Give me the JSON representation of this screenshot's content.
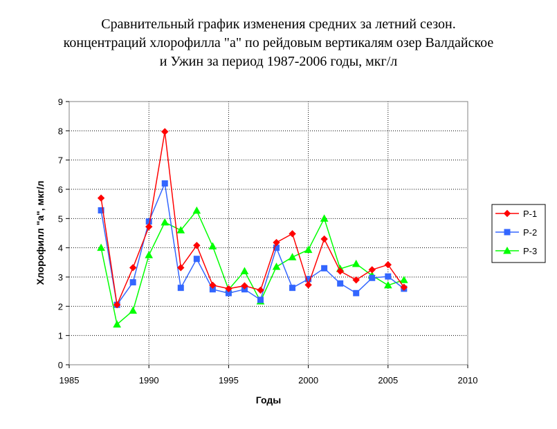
{
  "chart_data": {
    "type": "line",
    "title_lines": [
      "Сравнительный график изменения средних за летний сезон.",
      "концентраций хлорофилла \"а\" по рейдовым вертикалям озер Валдайское",
      "и Ужин за период 1987-2006 годы, мкг/л"
    ],
    "xlabel": "Годы",
    "ylabel": "Хлорофилл \"а\", мкг/л",
    "xlim": [
      1985,
      2010
    ],
    "ylim": [
      0,
      9
    ],
    "x_ticks": [
      1985,
      1990,
      1995,
      2000,
      2005,
      2010
    ],
    "y_ticks": [
      0,
      1,
      2,
      3,
      4,
      5,
      6,
      7,
      8,
      9
    ],
    "grid": true,
    "legend_position": "right",
    "x": [
      1987,
      1988,
      1989,
      1990,
      1991,
      1992,
      1993,
      1994,
      1995,
      1996,
      1997,
      1998,
      1999,
      2000,
      2001,
      2002,
      2003,
      2004,
      2005,
      2006
    ],
    "series": [
      {
        "name": "P-1",
        "color": "#ff0000",
        "marker": "diamond",
        "values": [
          5.7,
          2.05,
          3.32,
          4.72,
          7.97,
          3.32,
          4.08,
          2.72,
          2.6,
          2.7,
          2.55,
          4.18,
          4.48,
          2.73,
          4.3,
          3.2,
          2.9,
          3.25,
          3.42,
          2.65
        ]
      },
      {
        "name": "P-2",
        "color": "#3366ff",
        "marker": "square",
        "values": [
          5.28,
          2.05,
          2.82,
          4.9,
          6.2,
          2.63,
          3.62,
          2.58,
          2.45,
          2.58,
          2.22,
          4.0,
          2.63,
          2.93,
          3.3,
          2.78,
          2.45,
          2.97,
          3.02,
          2.6
        ]
      },
      {
        "name": "P-3",
        "color": "#00ff00",
        "marker": "triangle",
        "values": [
          4.0,
          1.38,
          1.85,
          3.75,
          4.87,
          4.6,
          5.27,
          4.05,
          2.57,
          3.2,
          2.17,
          3.35,
          3.68,
          3.93,
          5.0,
          3.28,
          3.45,
          3.05,
          2.72,
          2.9
        ]
      }
    ]
  }
}
